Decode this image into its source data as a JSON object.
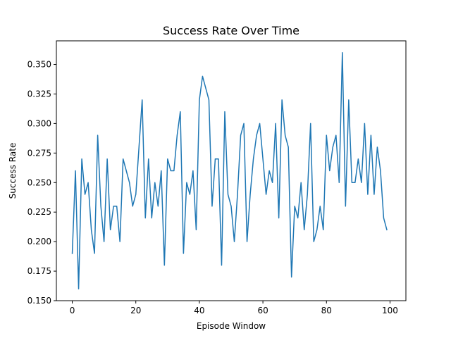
{
  "chart_data": {
    "type": "line",
    "title": "Success Rate Over Time",
    "xlabel": "Episode Window",
    "ylabel": "Success Rate",
    "xlim": [
      -5,
      105
    ],
    "ylim": [
      0.15,
      0.37
    ],
    "x_ticks": [
      0,
      20,
      40,
      60,
      80,
      100
    ],
    "y_ticks": [
      0.15,
      0.175,
      0.2,
      0.225,
      0.25,
      0.275,
      0.3,
      0.325,
      0.35
    ],
    "y_tick_labels": [
      "0.150",
      "0.175",
      "0.200",
      "0.225",
      "0.250",
      "0.275",
      "0.300",
      "0.325",
      "0.350"
    ],
    "grid": false,
    "legend": false,
    "series": [
      {
        "color": "#1f77b4",
        "x": [
          0,
          1,
          2,
          3,
          4,
          5,
          6,
          7,
          8,
          9,
          10,
          11,
          12,
          13,
          14,
          15,
          16,
          17,
          18,
          19,
          20,
          21,
          22,
          23,
          24,
          25,
          26,
          27,
          28,
          29,
          30,
          31,
          32,
          33,
          34,
          35,
          36,
          37,
          38,
          39,
          40,
          41,
          42,
          43,
          44,
          45,
          46,
          47,
          48,
          49,
          50,
          51,
          52,
          53,
          54,
          55,
          56,
          57,
          58,
          59,
          60,
          61,
          62,
          63,
          64,
          65,
          66,
          67,
          68,
          69,
          70,
          71,
          72,
          73,
          74,
          75,
          76,
          77,
          78,
          79,
          80,
          81,
          82,
          83,
          84,
          85,
          86,
          87,
          88,
          89,
          90,
          91,
          92,
          93,
          94,
          95,
          96,
          97,
          98,
          99
        ],
        "y": [
          0.19,
          0.26,
          0.16,
          0.27,
          0.24,
          0.25,
          0.21,
          0.19,
          0.29,
          0.23,
          0.2,
          0.27,
          0.21,
          0.23,
          0.23,
          0.2,
          0.27,
          0.26,
          0.25,
          0.23,
          0.24,
          0.28,
          0.32,
          0.22,
          0.27,
          0.22,
          0.25,
          0.23,
          0.26,
          0.18,
          0.27,
          0.26,
          0.26,
          0.29,
          0.31,
          0.19,
          0.25,
          0.24,
          0.26,
          0.21,
          0.32,
          0.34,
          0.33,
          0.32,
          0.23,
          0.27,
          0.27,
          0.18,
          0.31,
          0.24,
          0.23,
          0.2,
          0.24,
          0.29,
          0.3,
          0.2,
          0.24,
          0.27,
          0.29,
          0.3,
          0.27,
          0.24,
          0.26,
          0.25,
          0.3,
          0.22,
          0.32,
          0.29,
          0.28,
          0.17,
          0.23,
          0.22,
          0.25,
          0.21,
          0.24,
          0.3,
          0.2,
          0.21,
          0.23,
          0.21,
          0.29,
          0.26,
          0.28,
          0.29,
          0.25,
          0.36,
          0.23,
          0.32,
          0.25,
          0.25,
          0.27,
          0.25,
          0.3,
          0.24,
          0.29,
          0.24,
          0.28,
          0.26,
          0.22,
          0.21
        ]
      }
    ]
  }
}
